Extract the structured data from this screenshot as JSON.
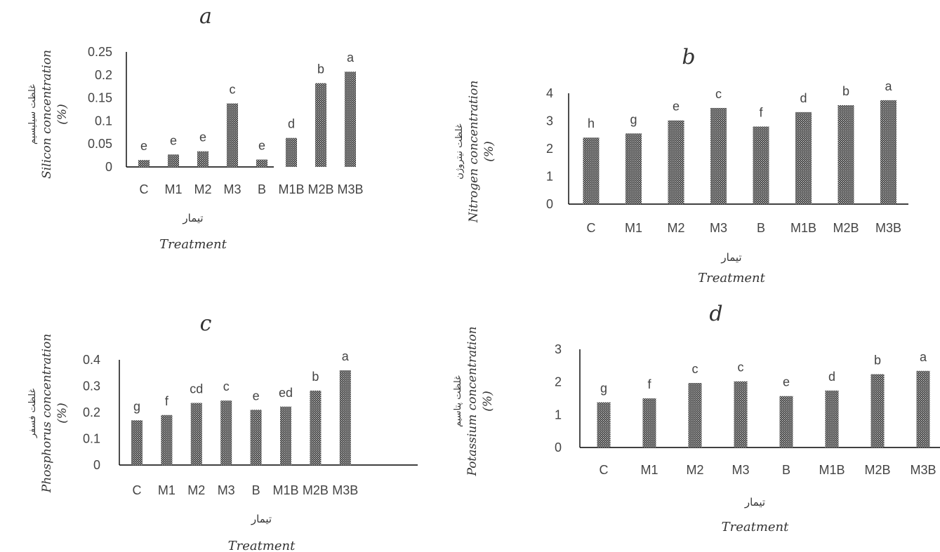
{
  "chart_data": [
    {
      "type": "bar",
      "panel_letter": "a",
      "categories": [
        "C",
        "M1",
        "M2",
        "M3",
        "B",
        "M1B",
        "M2B",
        "M3B"
      ],
      "values": [
        0.015,
        0.027,
        0.034,
        0.138,
        0.016,
        0.063,
        0.182,
        0.207
      ],
      "letters": [
        "e",
        "e",
        "e",
        "c",
        "e",
        "d",
        "b",
        "a"
      ],
      "ylim": [
        0,
        0.25
      ],
      "yticks": [
        "0.25",
        "0.2",
        "0.15",
        "0.1",
        "0.05",
        "0"
      ],
      "ylabel_fa": "غلظت سیلیسیم",
      "ylabel_en": "Silicon concentration",
      "ylabel_unit": "(%)",
      "xlabel_fa": "تیمار",
      "xlabel_en": "Treatment",
      "grid": false,
      "bar_pattern": "dotted-dark"
    },
    {
      "type": "bar",
      "panel_letter": "b",
      "categories": [
        "C",
        "M1",
        "M2",
        "M3",
        "B",
        "M1B",
        "M2B",
        "M3B"
      ],
      "values": [
        2.4,
        2.55,
        3.02,
        3.47,
        2.8,
        3.32,
        3.57,
        3.75
      ],
      "letters": [
        "h",
        "g",
        "e",
        "c",
        "f",
        "d",
        "b",
        "a"
      ],
      "ylim": [
        0,
        4
      ],
      "yticks": [
        "4",
        "3",
        "2",
        "1",
        "0"
      ],
      "ylabel_fa": "غلظت نیتروژن",
      "ylabel_en": "Nitrogen concentration",
      "ylabel_unit": "(%)",
      "xlabel_fa": "تیمار",
      "xlabel_en": "Treatment",
      "grid": false,
      "bar_pattern": "dotted-dark"
    },
    {
      "type": "bar",
      "panel_letter": "c",
      "categories": [
        "C",
        "M1",
        "M2",
        "M3",
        "B",
        "M1B",
        "M2B",
        "M3B"
      ],
      "values": [
        0.17,
        0.19,
        0.236,
        0.245,
        0.21,
        0.222,
        0.283,
        0.36
      ],
      "letters": [
        "g",
        "f",
        "cd",
        "c",
        "e",
        "ed",
        "b",
        "a"
      ],
      "ylim": [
        0,
        0.4
      ],
      "yticks": [
        "0.4",
        "0.3",
        "0.2",
        "0.1",
        "0"
      ],
      "ylabel_fa": "غلظت فسفر",
      "ylabel_en": "Phosphorus concentration",
      "ylabel_unit": "(%)",
      "xlabel_fa": "تیمار",
      "xlabel_en": "Treatment",
      "grid": false,
      "bar_pattern": "dotted-dark"
    },
    {
      "type": "bar",
      "panel_letter": "d",
      "categories": [
        "C",
        "M1",
        "M2",
        "M3",
        "B",
        "M1B",
        "M2B",
        "M3B"
      ],
      "values": [
        1.38,
        1.5,
        1.97,
        2.02,
        1.57,
        1.74,
        2.24,
        2.34
      ],
      "letters": [
        "g",
        "f",
        "c",
        "c",
        "e",
        "d",
        "b",
        "a"
      ],
      "ylim": [
        0,
        3
      ],
      "yticks": [
        "3",
        "2",
        "1",
        "0"
      ],
      "ylabel_fa": "غلظت پتاسیم",
      "ylabel_en": "Potassium concentration",
      "ylabel_unit": "(%)",
      "xlabel_fa": "تیمار",
      "xlabel_en": "Treatment",
      "grid": false,
      "bar_pattern": "dotted-dark"
    }
  ]
}
